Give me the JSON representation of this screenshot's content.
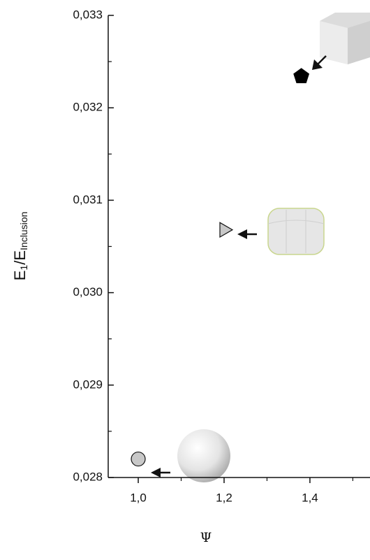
{
  "chart_data": {
    "type": "scatter",
    "ylabel_parts": [
      "E",
      "1",
      "/E",
      "Inclusion"
    ],
    "xlabel": "Ψ",
    "xlim": [
      0.93,
      1.54
    ],
    "ylim": [
      0.028,
      0.033
    ],
    "xticks": [
      {
        "value": 1.0,
        "label": "1,0"
      },
      {
        "value": 1.2,
        "label": "1,2"
      },
      {
        "value": 1.4,
        "label": "1,4"
      }
    ],
    "xminorticks": [
      1.1,
      1.3,
      1.5
    ],
    "yticks": [
      {
        "value": 0.028,
        "label": "0,028"
      },
      {
        "value": 0.029,
        "label": "0,029"
      },
      {
        "value": 0.03,
        "label": "0,030"
      },
      {
        "value": 0.031,
        "label": "0,031"
      },
      {
        "value": 0.032,
        "label": "0,032"
      },
      {
        "value": 0.033,
        "label": "0,033"
      }
    ],
    "yminorticks": [
      0.0285,
      0.0295,
      0.0305,
      0.0315,
      0.0325
    ],
    "series": [
      {
        "marker": "circle",
        "color": "#c8c8c8",
        "x": [
          1.0
        ],
        "values": [
          0.0282
        ]
      },
      {
        "marker": "triangle",
        "color": "#c8c8c8",
        "x": [
          1.2
        ],
        "values": [
          0.03068
        ]
      },
      {
        "marker": "pentagon",
        "color": "#000000",
        "x": [
          1.38
        ],
        "values": [
          0.03234
        ]
      }
    ]
  }
}
